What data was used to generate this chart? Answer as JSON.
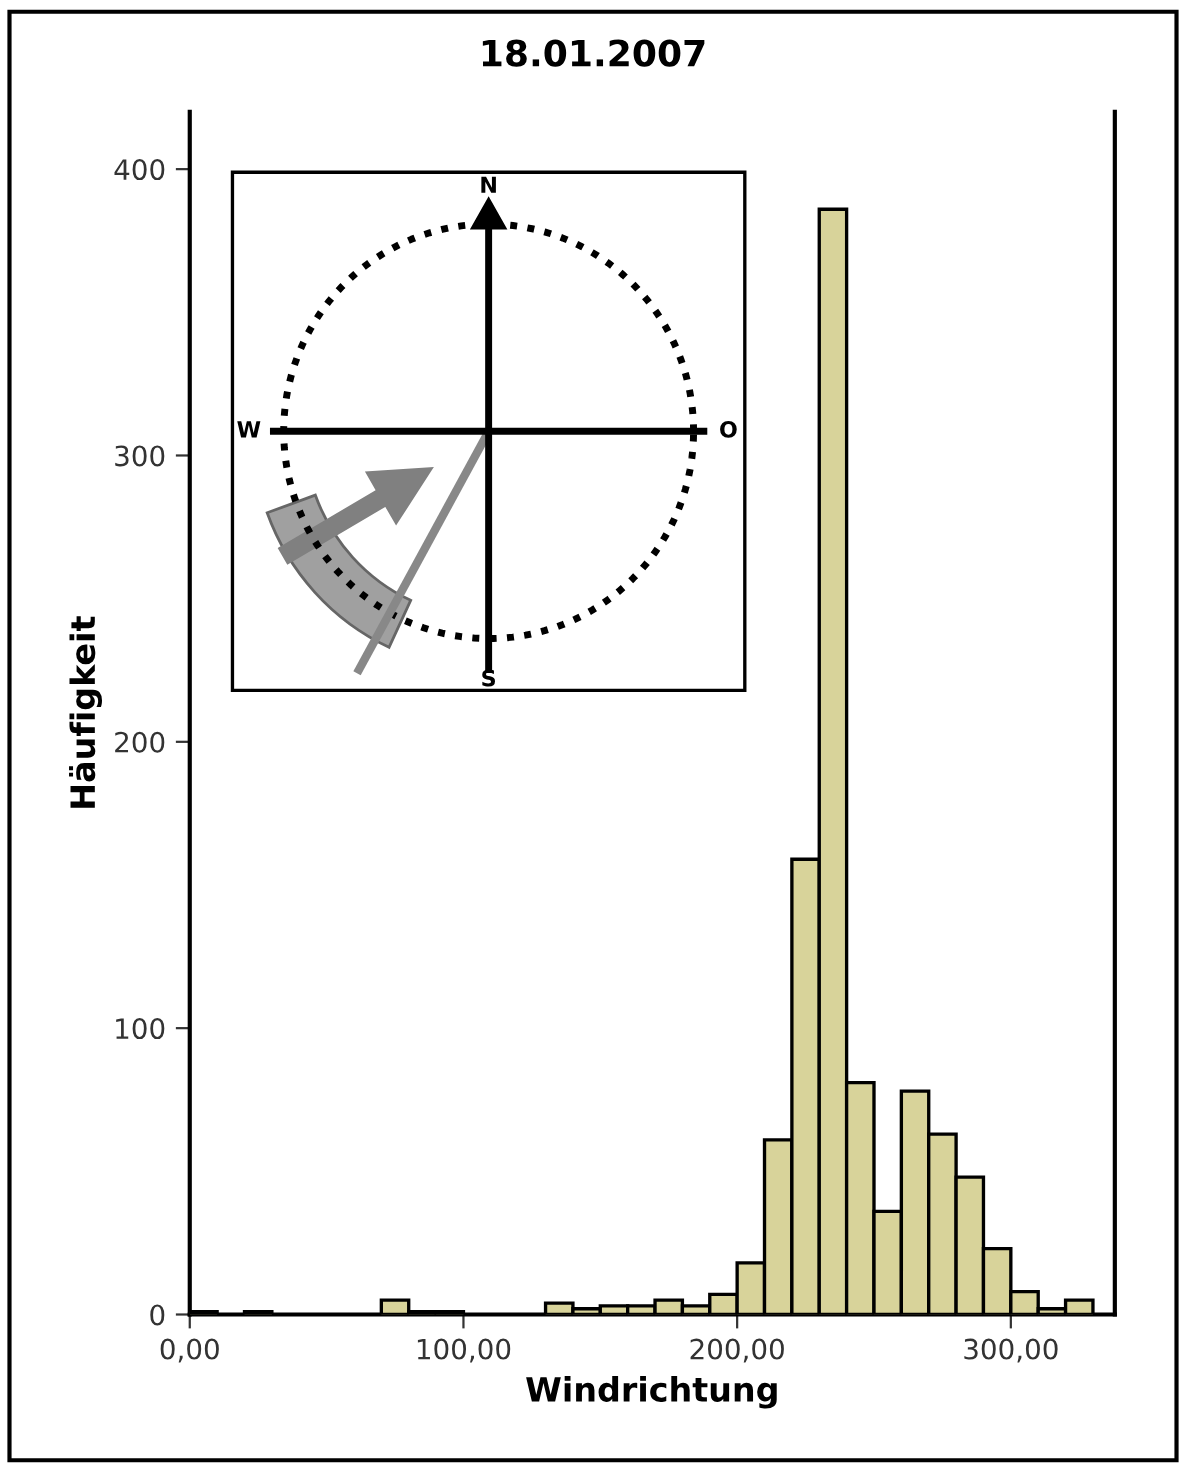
{
  "chart_data": {
    "type": "histogram",
    "title": "18.01.2007",
    "xlabel": "Windrichtung",
    "ylabel": "Häufigkeit",
    "bins": [
      0,
      10,
      20,
      30,
      40,
      50,
      60,
      70,
      80,
      90,
      100,
      110,
      120,
      130,
      140,
      150,
      160,
      170,
      180,
      190,
      200,
      210,
      220,
      230,
      240,
      250,
      260,
      270,
      280,
      290,
      300,
      310,
      320,
      330
    ],
    "values": [
      1,
      0,
      1,
      0,
      0,
      0,
      0,
      5,
      1,
      1,
      0,
      0,
      0,
      4,
      2,
      3,
      3,
      5,
      3,
      7,
      18,
      61,
      159,
      386,
      81,
      36,
      78,
      63,
      48,
      23,
      8,
      2,
      5
    ],
    "color": "#d8d39a",
    "xlim": [
      0,
      338
    ],
    "xticks": [
      {
        "value": 0,
        "label": "0,00"
      },
      {
        "value": 100,
        "label": "100,00"
      },
      {
        "value": 200,
        "label": "200,00"
      },
      {
        "value": 300,
        "label": "300,00"
      }
    ],
    "ylim": [
      0,
      420
    ],
    "yticks": [
      0,
      100,
      200,
      300,
      400
    ],
    "grid": false,
    "legend": false,
    "annotations": [
      "N",
      "O",
      "S",
      "W"
    ]
  }
}
